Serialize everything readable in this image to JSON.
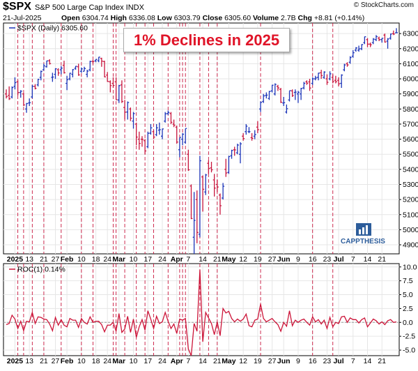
{
  "header": {
    "ticker": "$SPX",
    "name": "S&P 500 Large Cap Index INDX",
    "date": "21-Jul-2025",
    "ohlc": [
      {
        "label": "Open",
        "value": "6304.74"
      },
      {
        "label": "High",
        "value": "6336.08"
      },
      {
        "label": "Low",
        "value": "6303.79"
      },
      {
        "label": "Close",
        "value": "6305.60"
      },
      {
        "label": "Volume",
        "value": "2.7B"
      },
      {
        "label": "Chg",
        "value": "+8.81 (+0.14%)"
      }
    ],
    "credit": "© StockCharts.com"
  },
  "annotation": "1% Declines in 2025",
  "brand": "CAPPTHESIS",
  "colors": {
    "up": "#1a33b8",
    "down": "#c8143c",
    "decline_line": "#c8143c",
    "roc_line": "#cc1438",
    "grid": "#e6e6e6"
  },
  "chart_data": [
    {
      "type": "ohlc",
      "legend": "$SPX (Daily) 6305.60",
      "y_ticks": [
        4900,
        5000,
        5100,
        5200,
        5300,
        5400,
        5500,
        5600,
        5700,
        5800,
        5900,
        6000,
        6100,
        6200,
        6300
      ],
      "ylim": [
        4840,
        6370
      ],
      "x_tick_labels": [
        "2025",
        "13",
        "21",
        "27",
        "Feb",
        "10",
        "18",
        "24",
        "Mar",
        "10",
        "17",
        "24",
        "Apr",
        "7",
        "14",
        "21",
        "May",
        "12",
        "19",
        "27",
        "Jun",
        "9",
        "16",
        "23",
        "Jul",
        "7",
        "14",
        "21"
      ],
      "x_tick_index": [
        3,
        8,
        13,
        17,
        21,
        26,
        31,
        35,
        39,
        44,
        49,
        54,
        59,
        63,
        68,
        73,
        77,
        82,
        87,
        92,
        96,
        101,
        106,
        111,
        115,
        120,
        125,
        130
      ],
      "decline_day_index": [
        4,
        6,
        9,
        13,
        19,
        26,
        30,
        37,
        38,
        41,
        45,
        48,
        51,
        56,
        60,
        61,
        62,
        67,
        70,
        73,
        88,
        106,
        113
      ],
      "ohlc": [
        [
          "2024-12-31",
          5900,
          5930,
          5870,
          5882
        ],
        [
          "2025-01-02",
          5890,
          5950,
          5860,
          5868
        ],
        [
          "2025-01-03",
          5880,
          5950,
          5870,
          5942
        ],
        [
          "2025-01-06",
          5950,
          6010,
          5930,
          5975
        ],
        [
          "2025-01-07",
          5980,
          5990,
          5890,
          5909
        ],
        [
          "2025-01-08",
          5910,
          5925,
          5875,
          5918
        ],
        [
          "2025-01-10",
          5900,
          5905,
          5820,
          5827
        ],
        [
          "2025-01-13",
          5800,
          5840,
          5775,
          5836
        ],
        [
          "2025-01-14",
          5840,
          5870,
          5820,
          5842
        ],
        [
          "2025-01-15",
          5880,
          5960,
          5870,
          5950
        ],
        [
          "2025-01-16",
          5950,
          5965,
          5930,
          5937
        ],
        [
          "2025-01-17",
          5960,
          6000,
          5950,
          5997
        ],
        [
          "2025-01-21",
          6010,
          6055,
          5990,
          6049
        ],
        [
          "2025-01-22",
          6060,
          6100,
          6055,
          6086
        ],
        [
          "2025-01-23",
          6080,
          6120,
          6075,
          6119
        ],
        [
          "2025-01-24",
          6120,
          6130,
          6095,
          6101
        ],
        [
          "2025-01-27",
          6010,
          6040,
          5980,
          6012
        ],
        [
          "2025-01-28",
          6030,
          6070,
          6000,
          6067
        ],
        [
          "2025-01-29",
          6060,
          6070,
          6020,
          6039
        ],
        [
          "2025-01-30",
          6060,
          6085,
          6030,
          6071
        ],
        [
          "2025-01-31",
          6090,
          6120,
          6035,
          6040
        ],
        [
          "2025-02-03",
          5970,
          6020,
          5925,
          5994
        ],
        [
          "2025-02-04",
          6000,
          6040,
          5990,
          6037
        ],
        [
          "2025-02-05",
          6030,
          6065,
          6010,
          6061
        ],
        [
          "2025-02-06",
          6070,
          6085,
          6060,
          6083
        ],
        [
          "2025-02-07",
          6080,
          6100,
          6020,
          6026
        ],
        [
          "2025-02-10",
          6050,
          6075,
          6040,
          6066
        ],
        [
          "2025-02-11",
          6050,
          6080,
          6050,
          6068
        ],
        [
          "2025-02-12",
          6030,
          6060,
          6010,
          6051
        ],
        [
          "2025-02-13",
          6060,
          6120,
          6050,
          6115
        ],
        [
          "2025-02-14",
          6115,
          6125,
          6100,
          6114
        ],
        [
          "2025-02-18",
          6120,
          6130,
          6110,
          6129
        ],
        [
          "2025-02-19",
          6120,
          6145,
          6110,
          6144
        ],
        [
          "2025-02-20",
          6135,
          6140,
          6080,
          6117
        ],
        [
          "2025-02-21",
          6115,
          6120,
          6010,
          6013
        ],
        [
          "2025-02-24",
          6025,
          6045,
          5980,
          5983
        ],
        [
          "2025-02-25",
          5980,
          5990,
          5910,
          5955
        ],
        [
          "2025-02-26",
          5970,
          6010,
          5940,
          5956
        ],
        [
          "2025-02-27",
          5980,
          6010,
          5860,
          5861
        ],
        [
          "2025-02-28",
          5860,
          5960,
          5840,
          5955
        ],
        [
          "2025-03-03",
          5960,
          5990,
          5840,
          5850
        ],
        [
          "2025-03-04",
          5810,
          5860,
          5730,
          5779
        ],
        [
          "2025-03-05",
          5780,
          5850,
          5730,
          5843
        ],
        [
          "2025-03-06",
          5800,
          5810,
          5720,
          5739
        ],
        [
          "2025-03-07",
          5720,
          5780,
          5670,
          5770
        ],
        [
          "2025-03-10",
          5700,
          5710,
          5560,
          5614
        ],
        [
          "2025-03-11",
          5600,
          5650,
          5530,
          5572
        ],
        [
          "2025-03-12",
          5600,
          5620,
          5550,
          5599
        ],
        [
          "2025-03-13",
          5590,
          5600,
          5500,
          5522
        ],
        [
          "2025-03-14",
          5550,
          5650,
          5540,
          5639
        ],
        [
          "2025-03-17",
          5640,
          5700,
          5630,
          5675
        ],
        [
          "2025-03-18",
          5650,
          5660,
          5600,
          5614
        ],
        [
          "2025-03-19",
          5630,
          5700,
          5620,
          5675
        ],
        [
          "2025-03-20",
          5660,
          5710,
          5630,
          5663
        ],
        [
          "2025-03-21",
          5620,
          5670,
          5600,
          5668
        ],
        [
          "2025-03-24",
          5720,
          5780,
          5710,
          5768
        ],
        [
          "2025-03-25",
          5770,
          5790,
          5760,
          5777
        ],
        [
          "2025-03-26",
          5770,
          5780,
          5700,
          5712
        ],
        [
          "2025-03-27",
          5700,
          5730,
          5680,
          5693
        ],
        [
          "2025-03-28",
          5680,
          5690,
          5570,
          5581
        ],
        [
          "2025-03-31",
          5530,
          5610,
          5480,
          5612
        ],
        [
          "2025-04-01",
          5600,
          5640,
          5560,
          5633
        ],
        [
          "2025-04-02",
          5580,
          5670,
          5570,
          5671
        ],
        [
          "2025-04-03",
          5500,
          5530,
          5390,
          5397
        ],
        [
          "2025-04-04",
          5290,
          5300,
          5070,
          5074
        ],
        [
          "2025-04-07",
          4950,
          5250,
          4840,
          5062
        ],
        [
          "2025-04-08",
          5200,
          5260,
          4910,
          4982
        ],
        [
          "2025-04-09",
          4970,
          5490,
          4950,
          5457
        ],
        [
          "2025-04-10",
          5350,
          5360,
          5120,
          5268
        ],
        [
          "2025-04-11",
          5250,
          5370,
          5230,
          5363
        ],
        [
          "2025-04-14",
          5440,
          5460,
          5370,
          5406
        ],
        [
          "2025-04-15",
          5410,
          5450,
          5380,
          5397
        ],
        [
          "2025-04-16",
          5330,
          5370,
          5220,
          5276
        ],
        [
          "2025-04-17",
          5300,
          5330,
          5250,
          5283
        ],
        [
          "2025-04-21",
          5230,
          5240,
          5100,
          5159
        ],
        [
          "2025-04-22",
          5210,
          5310,
          5200,
          5288
        ],
        [
          "2025-04-23",
          5400,
          5470,
          5350,
          5376
        ],
        [
          "2025-04-24",
          5380,
          5490,
          5370,
          5485
        ],
        [
          "2025-04-25",
          5490,
          5530,
          5470,
          5525
        ],
        [
          "2025-04-28",
          5530,
          5550,
          5490,
          5529
        ],
        [
          "2025-04-29",
          5510,
          5570,
          5500,
          5561
        ],
        [
          "2025-04-30",
          5500,
          5580,
          5440,
          5569
        ],
        [
          "2025-05-01",
          5620,
          5640,
          5590,
          5604
        ],
        [
          "2025-05-02",
          5650,
          5700,
          5630,
          5686
        ],
        [
          "2025-05-05",
          5650,
          5680,
          5640,
          5650
        ],
        [
          "2025-05-06",
          5610,
          5640,
          5590,
          5606
        ],
        [
          "2025-05-07",
          5620,
          5660,
          5600,
          5631
        ],
        [
          "2025-05-08",
          5680,
          5720,
          5640,
          5663
        ],
        [
          "2025-05-12",
          5800,
          5850,
          5780,
          5844
        ],
        [
          "2025-05-13",
          5850,
          5900,
          5840,
          5887
        ],
        [
          "2025-05-14",
          5890,
          5910,
          5870,
          5892
        ],
        [
          "2025-05-15",
          5870,
          5920,
          5860,
          5916
        ],
        [
          "2025-05-16",
          5920,
          5960,
          5910,
          5958
        ],
        [
          "2025-05-19",
          5900,
          5970,
          5890,
          5963
        ],
        [
          "2025-05-20",
          5950,
          5960,
          5920,
          5940
        ],
        [
          "2025-05-21",
          5930,
          5940,
          5840,
          5845
        ],
        [
          "2025-05-22",
          5840,
          5880,
          5820,
          5842
        ],
        [
          "2025-05-23",
          5780,
          5830,
          5770,
          5802
        ],
        [
          "2025-05-27",
          5860,
          5920,
          5850,
          5922
        ],
        [
          "2025-05-28",
          5920,
          5930,
          5880,
          5889
        ],
        [
          "2025-05-29",
          5910,
          5930,
          5860,
          5912
        ],
        [
          "2025-05-30",
          5900,
          5920,
          5840,
          5911
        ],
        [
          "2025-06-02",
          5900,
          5940,
          5860,
          5936
        ],
        [
          "2025-06-03",
          5940,
          5980,
          5930,
          5970
        ],
        [
          "2025-06-04",
          5980,
          5990,
          5960,
          5971
        ],
        [
          "2025-06-05",
          5980,
          6000,
          5920,
          5939
        ],
        [
          "2025-06-06",
          5970,
          6010,
          5960,
          6000
        ],
        [
          "2025-06-09",
          6000,
          6020,
          5990,
          6006
        ],
        [
          "2025-06-10",
          6010,
          6040,
          5990,
          6038
        ],
        [
          "2025-06-11",
          6040,
          6060,
          6000,
          6022
        ],
        [
          "2025-06-12",
          6010,
          6050,
          6000,
          6045
        ],
        [
          "2025-06-13",
          6000,
          6030,
          5960,
          5977
        ],
        [
          "2025-06-16",
          6000,
          6050,
          5990,
          6033
        ],
        [
          "2025-06-17",
          6010,
          6030,
          5970,
          5982
        ],
        [
          "2025-06-18",
          5990,
          6020,
          5970,
          5981
        ],
        [
          "2025-06-20",
          5990,
          6010,
          5950,
          5967
        ],
        [
          "2025-06-23",
          5970,
          6030,
          5940,
          6025
        ],
        [
          "2025-06-24",
          6060,
          6100,
          6050,
          6092
        ],
        [
          "2025-06-25",
          6100,
          6110,
          6080,
          6092
        ],
        [
          "2025-06-26",
          6110,
          6150,
          6100,
          6141
        ],
        [
          "2025-06-27",
          6150,
          6190,
          6140,
          6173
        ],
        [
          "2025-06-30",
          6190,
          6210,
          6180,
          6205
        ],
        [
          "2025-07-01",
          6190,
          6220,
          6180,
          6198
        ],
        [
          "2025-07-02",
          6200,
          6230,
          6190,
          6227
        ],
        [
          "2025-07-03",
          6240,
          6280,
          6230,
          6279
        ],
        [
          "2025-07-07",
          6260,
          6270,
          6210,
          6230
        ],
        [
          "2025-07-08",
          6230,
          6240,
          6210,
          6226
        ],
        [
          "2025-07-09",
          6240,
          6270,
          6230,
          6263
        ],
        [
          "2025-07-10",
          6260,
          6290,
          6250,
          6280
        ],
        [
          "2025-07-11",
          6270,
          6280,
          6250,
          6260
        ],
        [
          "2025-07-14",
          6260,
          6270,
          6240,
          6269
        ],
        [
          "2025-07-15",
          6290,
          6300,
          6240,
          6244
        ],
        [
          "2025-07-16",
          6250,
          6270,
          6200,
          6264
        ],
        [
          "2025-07-17",
          6270,
          6300,
          6260,
          6297
        ],
        [
          "2025-07-18",
          6300,
          6320,
          6290,
          6297
        ],
        [
          "2025-07-21",
          6305,
          6336,
          6304,
          6306
        ]
      ]
    },
    {
      "type": "line",
      "legend": "ROC(1) 0.14%",
      "y_ticks": [
        -5.0,
        -2.5,
        0.0,
        2.5,
        5.0,
        7.5,
        10.0
      ],
      "ylim": [
        -6,
        10.6
      ],
      "series": [
        {
          "values": [
            -0.4,
            -0.2,
            1.3,
            0.6,
            -1.1,
            0.2,
            -1.5,
            0.2,
            0.1,
            1.8,
            -0.2,
            1.0,
            0.9,
            0.6,
            0.5,
            -0.3,
            -1.5,
            0.9,
            -0.5,
            0.5,
            -0.5,
            -0.8,
            0.7,
            0.4,
            0.4,
            -0.9,
            0.7,
            0.0,
            -0.3,
            1.0,
            0.0,
            0.2,
            0.2,
            -0.4,
            -1.7,
            -0.5,
            -0.5,
            0.0,
            -1.6,
            1.6,
            -1.8,
            -1.2,
            1.1,
            -1.8,
            0.6,
            -2.7,
            -0.8,
            0.5,
            -1.4,
            2.1,
            0.6,
            -1.1,
            1.1,
            -0.2,
            0.1,
            1.8,
            0.2,
            -1.1,
            -0.3,
            -2.0,
            0.6,
            0.4,
            0.7,
            -4.8,
            -6.0,
            -0.2,
            -1.6,
            9.5,
            -3.5,
            1.8,
            0.8,
            -0.2,
            -2.2,
            0.1,
            -2.4,
            2.5,
            1.7,
            2.0,
            0.7,
            0.1,
            0.6,
            0.2,
            0.6,
            1.5,
            -0.6,
            -0.8,
            0.4,
            0.6,
            3.3,
            0.7,
            0.1,
            0.4,
            0.7,
            0.1,
            -0.4,
            -1.6,
            0.0,
            -0.7,
            2.1,
            -0.6,
            0.4,
            0.0,
            0.4,
            0.6,
            0.0,
            -0.5,
            1.0,
            0.1,
            0.5,
            -0.3,
            0.4,
            -1.1,
            0.9,
            -0.8,
            0.0,
            -0.2,
            1.0,
            1.1,
            0.0,
            0.8,
            0.5,
            0.5,
            -0.1,
            0.5,
            0.8,
            -0.8,
            -0.1,
            0.6,
            0.3,
            -0.3,
            0.1,
            -0.4,
            0.3,
            0.5,
            0.0,
            0.1
          ]
        }
      ]
    }
  ]
}
